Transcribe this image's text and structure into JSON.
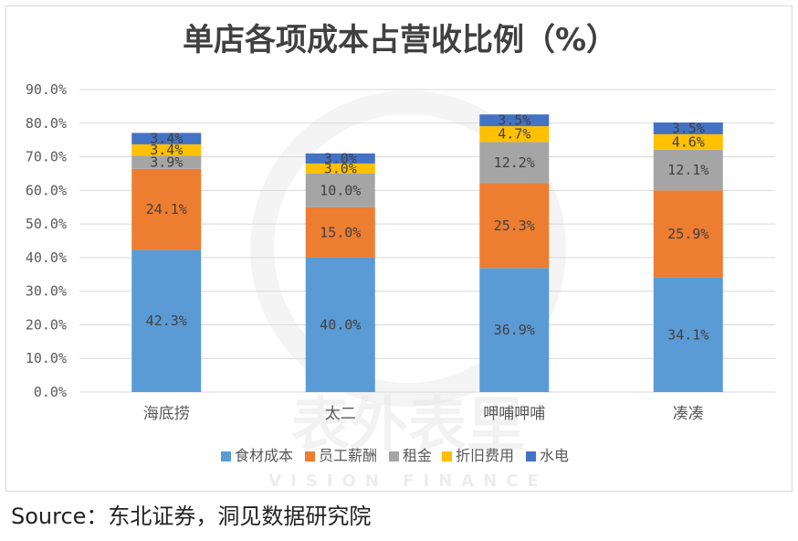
{
  "source": "Source：东北证券，洞见数据研究院",
  "watermark": {
    "main": "表外表里",
    "sub": "VISION FINANCE"
  },
  "chart_data": {
    "type": "bar",
    "stacked": true,
    "title": "单店各项成本占营收比例（%）",
    "xlabel": "",
    "ylabel": "",
    "ylim": [
      0,
      90
    ],
    "yticks": [
      "0.0%",
      "10.0%",
      "20.0%",
      "30.0%",
      "40.0%",
      "50.0%",
      "60.0%",
      "70.0%",
      "80.0%",
      "90.0%"
    ],
    "grid": true,
    "legend_position": "bottom",
    "categories": [
      "海底捞",
      "太二",
      "呷哺呷哺",
      "凑凑"
    ],
    "series": [
      {
        "name": "食材成本",
        "color": "#5b9bd5",
        "values": [
          42.3,
          40.0,
          36.9,
          34.1
        ],
        "labels": [
          "42.3%",
          "40.0%",
          "36.9%",
          "34.1%"
        ]
      },
      {
        "name": "员工薪酬",
        "color": "#ed7d31",
        "values": [
          24.1,
          15.0,
          25.3,
          25.9
        ],
        "labels": [
          "24.1%",
          "15.0%",
          "25.3%",
          "25.9%"
        ]
      },
      {
        "name": "租金",
        "color": "#a5a5a5",
        "values": [
          3.9,
          10.0,
          12.2,
          12.1
        ],
        "labels": [
          "3.9%",
          "10.0%",
          "12.2%",
          "12.1%"
        ]
      },
      {
        "name": "折旧费用",
        "color": "#ffc000",
        "values": [
          3.4,
          3.0,
          4.7,
          4.6
        ],
        "labels": [
          "3.4%",
          "3.0%",
          "4.7%",
          "4.6%"
        ]
      },
      {
        "name": "水电",
        "color": "#4472c4",
        "values": [
          3.4,
          3.0,
          3.5,
          3.5
        ],
        "labels": [
          "3.4%",
          "3.0%",
          "3.5%",
          "3.5%"
        ]
      }
    ]
  }
}
